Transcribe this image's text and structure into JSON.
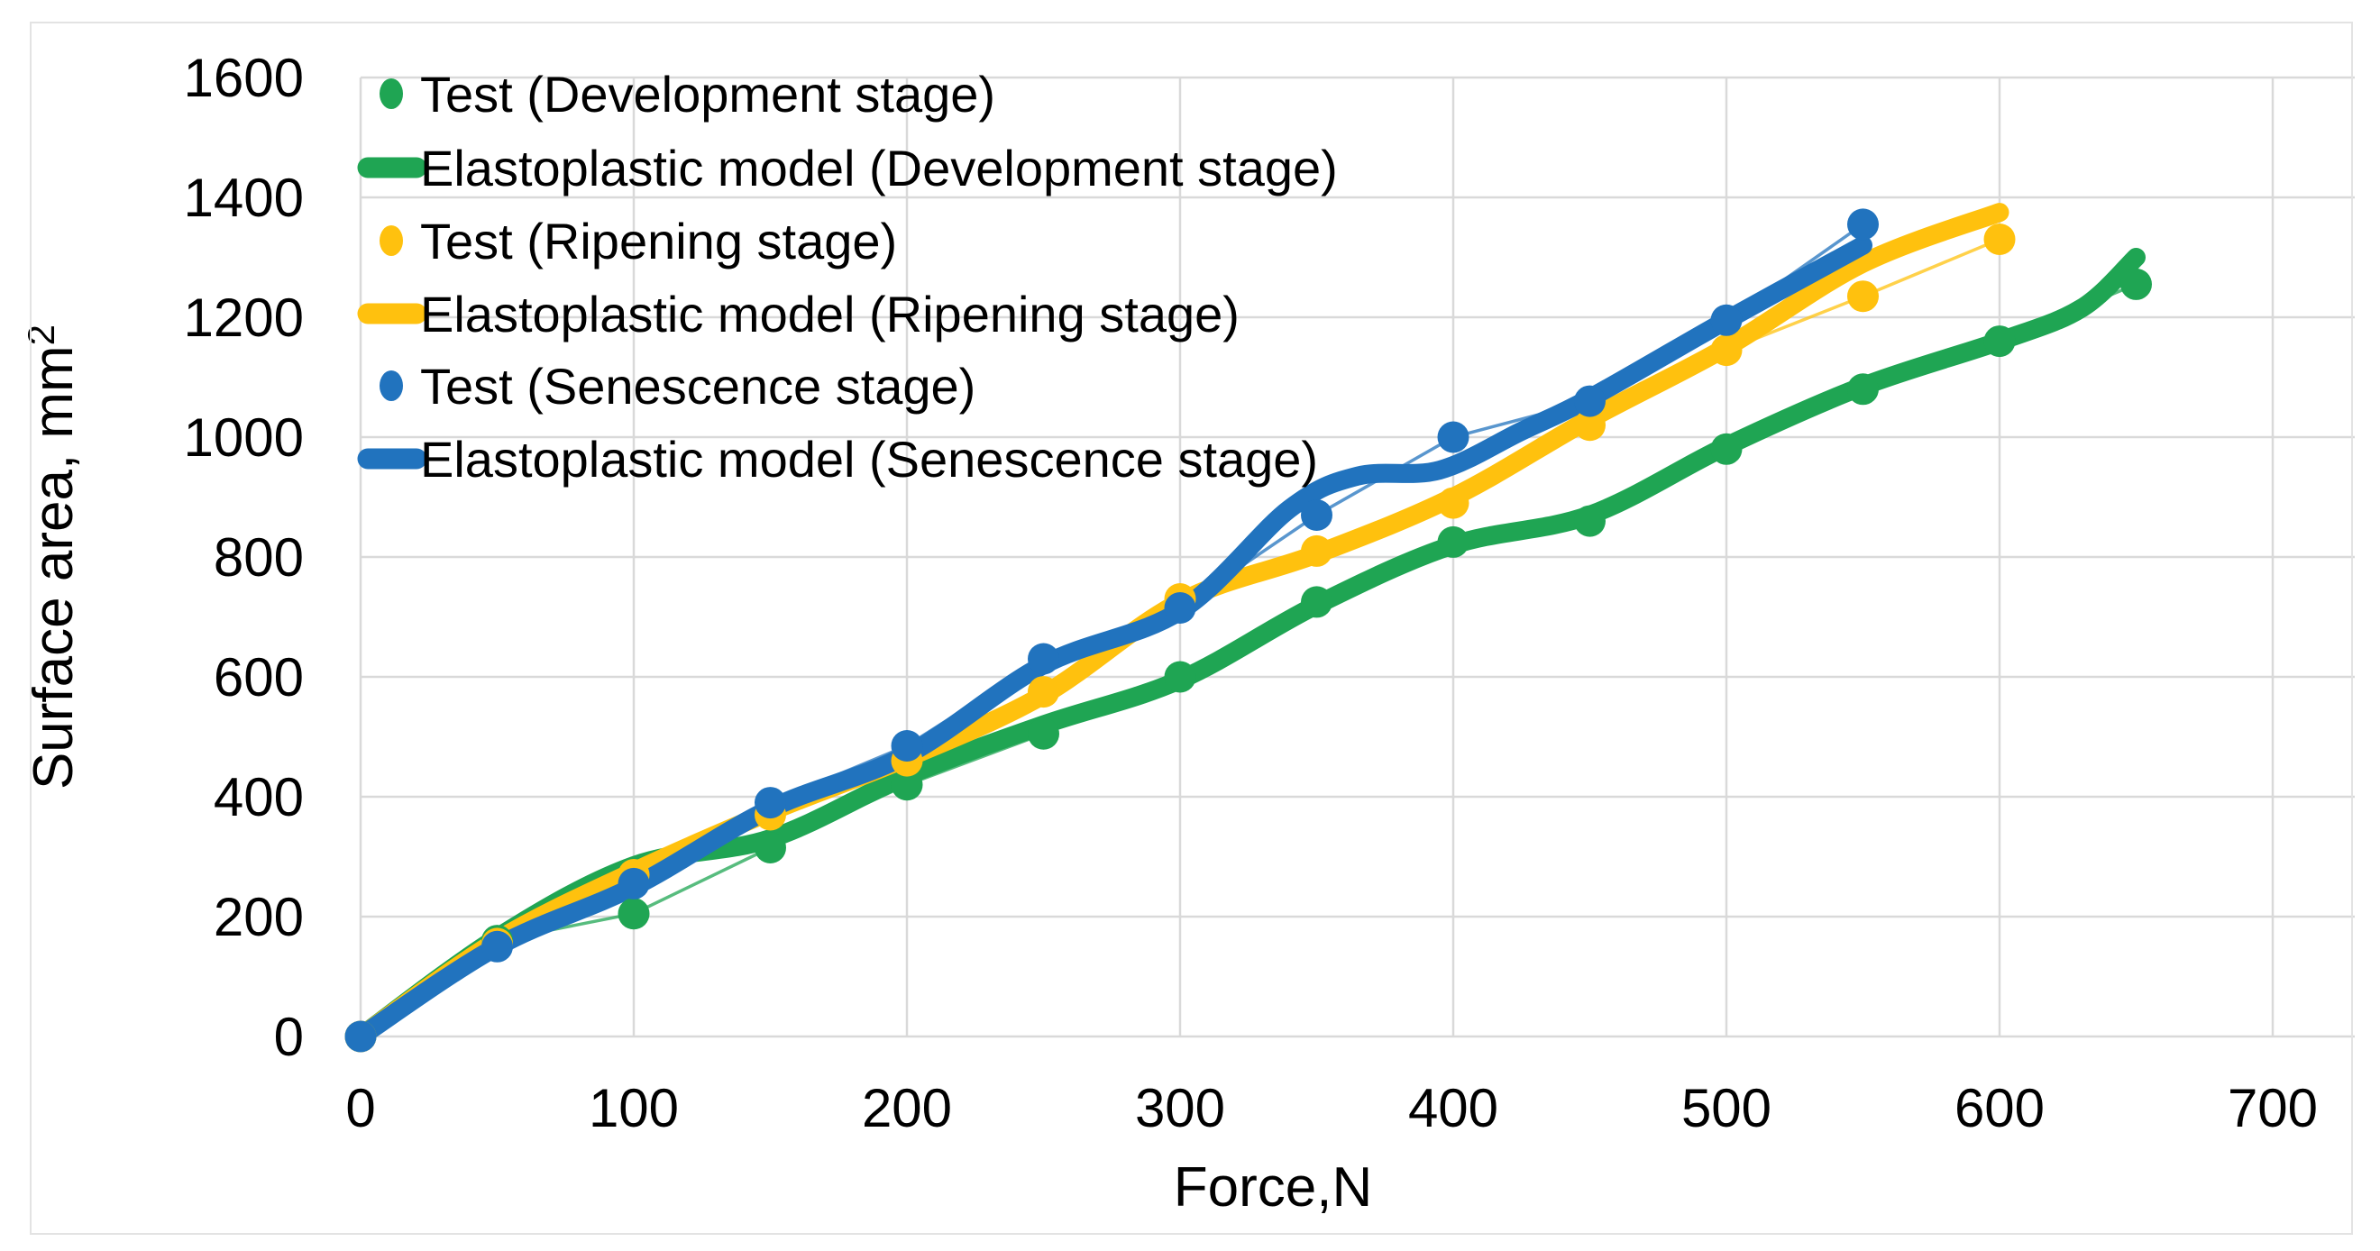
{
  "figure": {
    "background": "#ffffff",
    "border_color": "#e3e3e3"
  },
  "chart_data": {
    "type": "line",
    "title": "",
    "xlabel": "Force,N",
    "ylabel_main": "Surface area, mm",
    "ylabel_sup": "2",
    "xlim": [
      0,
      730
    ],
    "ylim": [
      0,
      1600
    ],
    "xticks": [
      0,
      100,
      200,
      300,
      400,
      500,
      600,
      700
    ],
    "yticks": [
      0,
      200,
      400,
      600,
      800,
      1000,
      1200,
      1400,
      1600
    ],
    "grid": true,
    "grid_color": "#d9d9d9",
    "legend_position": "top-left",
    "text_color": "#000000",
    "series": [
      {
        "name": "Test (Development stage)",
        "kind": "test",
        "color": "#1fa553",
        "x": [
          0,
          50,
          100,
          150,
          200,
          250,
          300,
          350,
          400,
          450,
          500,
          550,
          600,
          650
        ],
        "y": [
          0,
          160,
          205,
          315,
          420,
          505,
          600,
          725,
          825,
          860,
          980,
          1080,
          1160,
          1255
        ]
      },
      {
        "name": "Elastoplastic model (Development stage)",
        "kind": "model",
        "color": "#1fa553",
        "x": [
          0,
          50,
          100,
          150,
          200,
          250,
          300,
          350,
          400,
          450,
          500,
          550,
          600,
          630,
          650
        ],
        "y": [
          0,
          165,
          285,
          330,
          435,
          520,
          595,
          720,
          820,
          870,
          985,
          1085,
          1160,
          1215,
          1300
        ]
      },
      {
        "name": "Test (Ripening stage)",
        "kind": "test",
        "color": "#ffc10e",
        "x": [
          0,
          50,
          100,
          150,
          200,
          250,
          300,
          350,
          400,
          450,
          500,
          550,
          600
        ],
        "y": [
          0,
          155,
          270,
          370,
          460,
          575,
          730,
          810,
          890,
          1020,
          1145,
          1235,
          1330
        ]
      },
      {
        "name": "Elastoplastic model (Ripening stage)",
        "kind": "model",
        "color": "#ffc10e",
        "x": [
          0,
          50,
          100,
          150,
          200,
          250,
          300,
          350,
          400,
          450,
          500,
          550,
          600
        ],
        "y": [
          0,
          160,
          275,
          375,
          465,
          570,
          725,
          805,
          900,
          1030,
          1150,
          1290,
          1375
        ]
      },
      {
        "name": "Test (Senescence stage)",
        "kind": "test",
        "color": "#2173be",
        "x": [
          0,
          50,
          100,
          150,
          200,
          250,
          300,
          350,
          400,
          450,
          500,
          550
        ],
        "y": [
          0,
          150,
          255,
          390,
          485,
          630,
          715,
          870,
          1000,
          1060,
          1195,
          1355
        ]
      },
      {
        "name": "Elastoplastic model (Senescence stage)",
        "kind": "model",
        "color": "#2173be",
        "x": [
          0,
          50,
          100,
          150,
          200,
          250,
          300,
          340,
          365,
          395,
          425,
          450,
          500,
          550
        ],
        "y": [
          0,
          150,
          250,
          380,
          470,
          620,
          710,
          880,
          935,
          945,
          1010,
          1065,
          1195,
          1320
        ]
      }
    ]
  }
}
